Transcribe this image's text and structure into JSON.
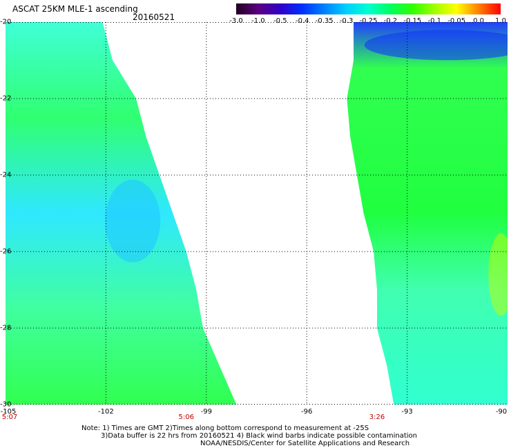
{
  "header": {
    "title": "ASCAT 25KM MLE-1 ascending",
    "date": "20160521"
  },
  "colorbar": {
    "ticks": [
      "-3.0",
      "-1.0",
      "-0.5",
      "-0.4",
      "-0.35",
      "-0.3",
      "-0.25",
      "-0.2",
      "-0.15",
      "-0.1",
      "-0.05",
      "0.0",
      "1.0"
    ],
    "colors": [
      "#200020",
      "#5a0080",
      "#3000c8",
      "#0030ff",
      "#0080ff",
      "#00d0ff",
      "#00ffd0",
      "#00ff60",
      "#30ff00",
      "#a0ff00",
      "#ffff00",
      "#ff8000",
      "#ff0000"
    ]
  },
  "axes": {
    "lat_labels": [
      "-20",
      "-22",
      "-24",
      "-26",
      "-28",
      "-30"
    ],
    "lon_labels": [
      "-105",
      "-102",
      "-99",
      "-96",
      "-93",
      "-90"
    ],
    "time_labels": [
      "5:07",
      "5:06",
      "3:26"
    ]
  },
  "map": {
    "lon_range": [
      -105,
      -90
    ],
    "lat_range": [
      -30,
      -20
    ],
    "fill_color": "#00ff80",
    "swath_edges": {
      "west_swath_east_edge": [
        [
          -20.0,
          -102.1
        ],
        [
          -21.0,
          -101.8
        ],
        [
          -22.0,
          -101.1
        ],
        [
          -23.0,
          -100.8
        ],
        [
          -24.0,
          -100.4
        ],
        [
          -25.0,
          -100.0
        ],
        [
          -26.0,
          -99.6
        ],
        [
          -27.0,
          -99.3
        ],
        [
          -28.0,
          -99.1
        ],
        [
          -29.0,
          -98.6
        ],
        [
          -30.0,
          -98.1
        ]
      ],
      "east_swath_west_edge": [
        [
          -20.0,
          -94.6
        ],
        [
          -21.0,
          -94.6
        ],
        [
          -22.0,
          -94.8
        ],
        [
          -23.0,
          -94.7
        ],
        [
          -24.0,
          -94.5
        ],
        [
          -25.0,
          -94.3
        ],
        [
          -26.0,
          -94.0
        ],
        [
          -27.0,
          -93.9
        ],
        [
          -28.0,
          -93.9
        ],
        [
          -29.0,
          -93.6
        ],
        [
          -30.0,
          -93.4
        ]
      ]
    }
  },
  "notes": {
    "line1": "Note: 1) Times are GMT 2)Times along bottom correspond to measurement at -25S",
    "line2": "3)Data buffer is 22 hrs from 20160521 4) Black wind barbs indicate possible contamination",
    "line3": "NOAA/NESDIS/Center for Satellite Applications and Research"
  }
}
